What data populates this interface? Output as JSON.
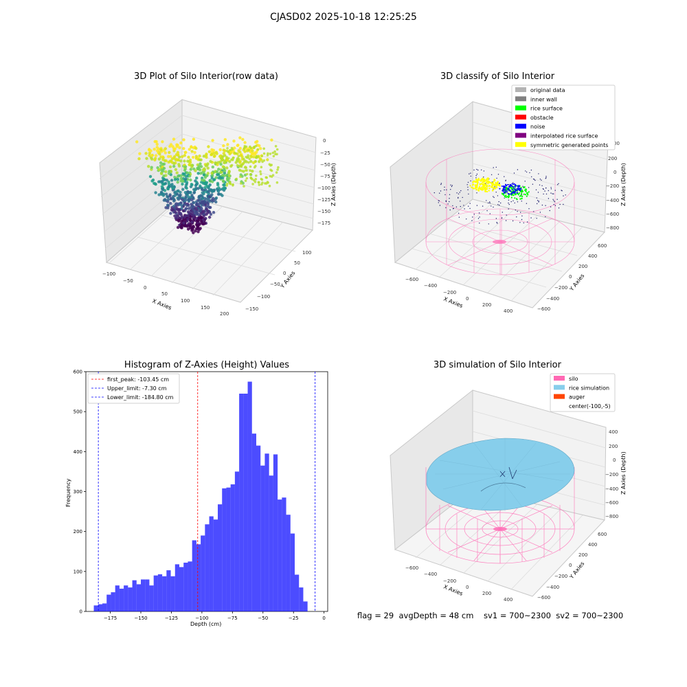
{
  "figure": {
    "suptitle": "CJASD02 2025-10-18 12:25:25",
    "footer": "flag = 29  avgDepth = 48 cm    sv1 = 700~2300  sv2 = 700~2300"
  },
  "panels": {
    "raw": {
      "title": "3D Plot of Silo Interior(row data)",
      "xlabel": "X Axies",
      "ylabel": "Y Axies",
      "zlabel": "Z Axies (Depth)",
      "xticks": [
        "−100",
        "−50",
        "0",
        "50",
        "100",
        "150",
        "200"
      ],
      "yticks": [
        "−150",
        "−100",
        "−50",
        "0",
        "50",
        "100"
      ],
      "zticks": [
        "0",
        "−25",
        "−50",
        "−75",
        "−100",
        "−125",
        "−150",
        "−175"
      ]
    },
    "classify": {
      "title": "3D classify of Silo Interior",
      "xlabel": "X Axies",
      "ylabel": "Y Axies",
      "zlabel": "Z Axies (Depth)",
      "xticks": [
        "−600",
        "−400",
        "−200",
        "0",
        "200",
        "400"
      ],
      "yticks": [
        "−600",
        "−400",
        "−200",
        "0",
        "200",
        "400",
        "600"
      ],
      "zticks": [
        "200",
        "0",
        "−200",
        "−400",
        "−600",
        "−800"
      ],
      "ztick_partial": "00",
      "legend": [
        {
          "label": "original data",
          "color": "#b3b3b3"
        },
        {
          "label": "inner wall",
          "color": "#808080"
        },
        {
          "label": "rice surface",
          "color": "#00ff00"
        },
        {
          "label": "obstacle",
          "color": "#ff0000"
        },
        {
          "label": "noise",
          "color": "#0000ff"
        },
        {
          "label": "interpolated rice surface",
          "color": "#800080"
        },
        {
          "label": "symmetric generated points",
          "color": "#ffff00"
        }
      ]
    },
    "simulation": {
      "title": "3D simulation of Silo Interior",
      "xlabel": "X Axies",
      "ylabel": "Y Axies",
      "zlabel": "Z Axies (Depth)",
      "xticks": [
        "−600",
        "−400",
        "−200",
        "0",
        "200",
        "400"
      ],
      "yticks": [
        "−600",
        "−400",
        "−200",
        "0",
        "200",
        "400",
        "600"
      ],
      "zticks": [
        "400",
        "200",
        "0",
        "−200",
        "−400",
        "−600",
        "−800"
      ],
      "legend": [
        {
          "label": "silo",
          "color": "#ff69b4"
        },
        {
          "label": "rice simulation",
          "color": "#87ceeb"
        },
        {
          "label": "auger",
          "color": "#ff4500"
        },
        {
          "label": "center(-100,-5)",
          "color": "none"
        }
      ]
    }
  },
  "chart_data": {
    "type": "bar",
    "title": "Histogram of Z-Axies (Height) Values",
    "xlabel": "Depth (cm)",
    "ylabel": "Frequency",
    "xlim": [
      -195,
      3
    ],
    "ylim": [
      0,
      600
    ],
    "xticks": [
      -175,
      -150,
      -125,
      -100,
      -75,
      -50,
      -25,
      0
    ],
    "xtick_labels": [
      "−175",
      "−150",
      "−125",
      "−100",
      "−75",
      "−50",
      "−25",
      "0"
    ],
    "yticks": [
      0,
      100,
      200,
      300,
      400,
      500,
      600
    ],
    "bin_start": -188.5,
    "bin_width": 3.5,
    "values": [
      15,
      18,
      20,
      42,
      48,
      65,
      57,
      65,
      60,
      78,
      68,
      80,
      80,
      65,
      90,
      93,
      88,
      103,
      88,
      118,
      111,
      122,
      125,
      178,
      168,
      190,
      218,
      238,
      230,
      268,
      308,
      310,
      318,
      350,
      545,
      545,
      575,
      445,
      415,
      365,
      395,
      340,
      393,
      280,
      285,
      242,
      195,
      92,
      60,
      25
    ],
    "bar_color": "#0000ff",
    "vlines": [
      {
        "x": -103.45,
        "color": "#ff0000"
      },
      {
        "x": -7.3,
        "color": "#0000ff"
      },
      {
        "x": -184.8,
        "color": "#0000ff"
      }
    ],
    "legend": [
      {
        "label": "first_peak: -103.45 cm",
        "color": "#ff0000"
      },
      {
        "label": "Upper_limit: -7.30 cm",
        "color": "#0000ff"
      },
      {
        "label": "Lower_limit: -184.80 cm",
        "color": "#0000ff"
      }
    ]
  }
}
